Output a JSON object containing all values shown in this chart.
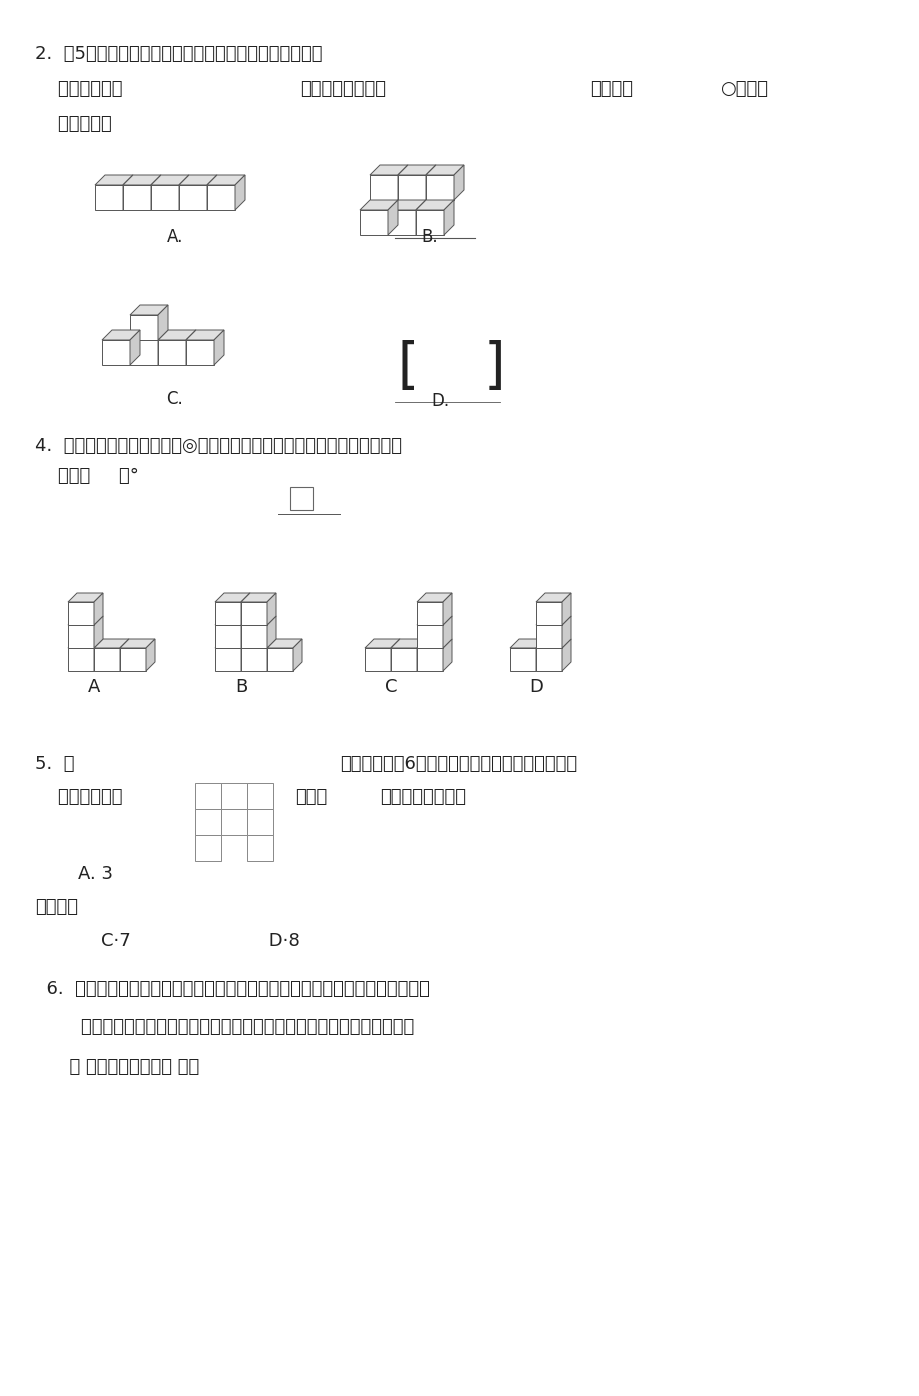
{
  "bg": "#ffffff",
  "fg": "#222222",
  "ec": "#555555",
  "q2_t1": "2.  用5个同样大小的正方体摆一摆，要求从正面看到的是",
  "q2_t2a": "    左面看到的是",
  "q2_t2b": "，从上面看到的是",
  "q2_t2c": "。下面的",
  "q2_t3": "    摆法中，（",
  "q4_t1": "4.  给左边的立体图形添一个◎，使得从上面看到的形状如右图，摆法正确",
  "q4_t2": "    的是（     ）°",
  "q5_ta": "5.  一",
  "q5_tb": "个立体图形由6个同样大小的正方体组成，从左面",
  "q5_tc": "    上面看形状是",
  "q5_td": "，共有",
  "q5_te": "）种不同的搭法。",
  "q5_A": "    A. 3",
  "q5_look": "看形状是",
  "q5_CD": "        C·7                        D·8",
  "q6_t1": "  6.  如图所示，是由几个相同小正方体搭成的几何体从上面看到的图形，小正方",
  "q6_t2": "        形内的数字表示在该位置的小正方体的个数。则这个几何体从前面看是",
  "q6_t3": "      （ ），从右面看是（ ）。",
  "font_size": 13
}
